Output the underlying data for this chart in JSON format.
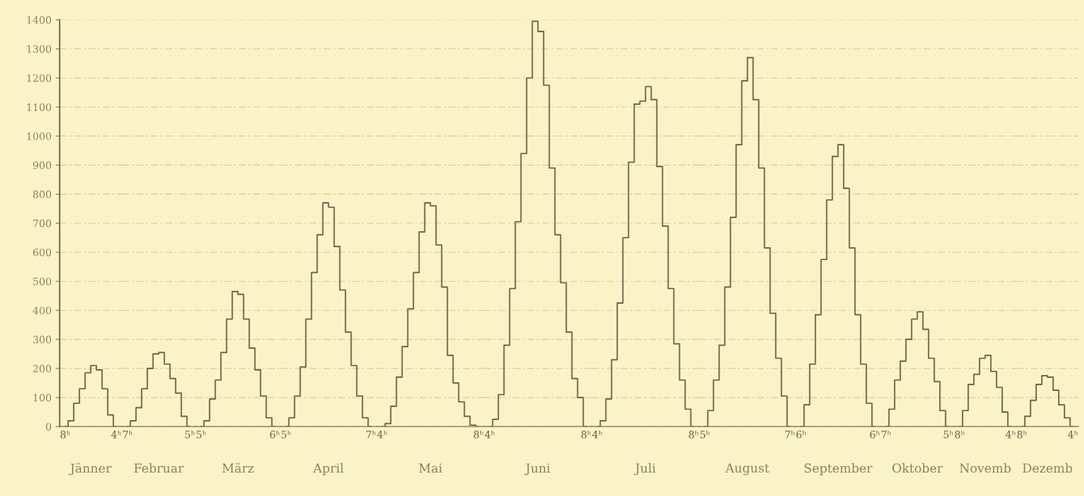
{
  "chart_data": [
    {
      "type": "step",
      "title": "Jänner",
      "categories": [
        "8ʰ",
        null,
        null,
        null,
        null,
        null,
        null,
        null,
        null,
        "4ʰ"
      ],
      "values": [
        0,
        20,
        80,
        130,
        185,
        210,
        195,
        130,
        40,
        0
      ],
      "color": "#6e6248",
      "ylim": [
        0,
        1400
      ],
      "yticks": [
        0,
        100,
        200,
        300,
        400,
        500,
        600,
        700,
        800,
        900,
        1000,
        1100,
        1200,
        1300,
        1400
      ],
      "grid": "y"
    },
    {
      "type": "step",
      "title": "Februar",
      "categories": [
        "7ʰ",
        null,
        null,
        null,
        null,
        null,
        null,
        null,
        null,
        null,
        null,
        "5ʰ"
      ],
      "values": [
        0,
        20,
        65,
        130,
        200,
        250,
        255,
        215,
        165,
        115,
        35,
        0
      ],
      "color": "#6e6248",
      "ylim": [
        0,
        1400
      ],
      "grid": "y",
      "tick_labels": "x"
    },
    {
      "type": "step",
      "title": "März",
      "categories": [
        "5ʰ",
        null,
        null,
        null,
        null,
        null,
        null,
        null,
        null,
        null,
        null,
        null,
        null,
        "6ʰ"
      ],
      "values": [
        0,
        20,
        95,
        160,
        255,
        370,
        465,
        455,
        370,
        270,
        195,
        105,
        30,
        0
      ],
      "color": "#6e6248",
      "ylim": [
        0,
        1400
      ],
      "grid": "y",
      "tick_labels": "x"
    },
    {
      "type": "step",
      "title": "April",
      "categories": [
        "5ʰ",
        null,
        null,
        null,
        null,
        null,
        null,
        null,
        null,
        null,
        null,
        null,
        null,
        null,
        null,
        "7ʰ"
      ],
      "values": [
        0,
        30,
        105,
        205,
        370,
        530,
        660,
        770,
        755,
        620,
        470,
        325,
        210,
        105,
        30,
        0
      ],
      "color": "#6e6248",
      "ylim": [
        0,
        1400
      ],
      "grid": "y",
      "tick_labels": "x"
    },
    {
      "type": "step",
      "title": "Mai",
      "categories": [
        "4ʰ",
        null,
        null,
        null,
        null,
        null,
        null,
        null,
        null,
        null,
        null,
        null,
        null,
        null,
        null,
        null,
        null,
        "8ʰ"
      ],
      "values": [
        0,
        10,
        70,
        170,
        275,
        405,
        530,
        670,
        770,
        760,
        625,
        480,
        245,
        150,
        85,
        35,
        5,
        0
      ],
      "color": "#6e6248",
      "ylim": [
        0,
        1400
      ],
      "grid": "y",
      "tick_labels": "x"
    },
    {
      "type": "step",
      "title": "Juni",
      "categories": [
        "4ʰ",
        null,
        null,
        null,
        null,
        null,
        null,
        null,
        null,
        null,
        null,
        null,
        null,
        null,
        null,
        null,
        null,
        "8ʰ"
      ],
      "values": [
        0,
        25,
        110,
        280,
        475,
        705,
        940,
        1200,
        1395,
        1360,
        1175,
        890,
        660,
        495,
        325,
        165,
        100,
        0
      ],
      "color": "#6e6248",
      "ylim": [
        0,
        1400
      ],
      "grid": "y",
      "tick_labels": "x"
    },
    {
      "type": "step",
      "title": "Juli",
      "categories": [
        "4ʰ",
        null,
        null,
        null,
        null,
        null,
        null,
        null,
        null,
        null,
        null,
        null,
        null,
        null,
        null,
        null,
        null,
        "8ʰ"
      ],
      "values": [
        0,
        20,
        95,
        230,
        425,
        650,
        910,
        1110,
        1120,
        1170,
        1125,
        895,
        690,
        475,
        285,
        160,
        60,
        0
      ],
      "color": "#6e6248",
      "ylim": [
        0,
        1400
      ],
      "grid": "y",
      "tick_labels": "x"
    },
    {
      "type": "step",
      "title": "August",
      "categories": [
        "5ʰ",
        null,
        null,
        null,
        null,
        null,
        null,
        null,
        null,
        null,
        null,
        null,
        null,
        null,
        null,
        "7ʰ"
      ],
      "values": [
        0,
        55,
        160,
        280,
        480,
        720,
        970,
        1190,
        1270,
        1125,
        890,
        615,
        390,
        235,
        105,
        0
      ],
      "color": "#6e6248",
      "ylim": [
        0,
        1400
      ],
      "grid": "y",
      "tick_labels": "x"
    },
    {
      "type": "step",
      "title": "September",
      "categories": [
        "6ʰ",
        null,
        null,
        null,
        null,
        null,
        null,
        null,
        null,
        null,
        null,
        null,
        null,
        "6ʰ"
      ],
      "values": [
        0,
        75,
        215,
        385,
        575,
        780,
        930,
        970,
        820,
        615,
        385,
        215,
        80,
        0
      ],
      "color": "#6e6248",
      "ylim": [
        0,
        1400
      ],
      "grid": "y",
      "tick_labels": "x"
    },
    {
      "type": "step",
      "title": "Oktober",
      "categories": [
        "7ʰ",
        null,
        null,
        null,
        null,
        null,
        null,
        null,
        null,
        null,
        null,
        "5ʰ"
      ],
      "values": [
        0,
        60,
        160,
        225,
        300,
        370,
        395,
        335,
        235,
        155,
        55,
        0
      ],
      "color": "#6e6248",
      "ylim": [
        0,
        1400
      ],
      "grid": "y",
      "tick_labels": "x"
    },
    {
      "type": "step",
      "title": "Novemb",
      "categories": [
        "8ʰ",
        null,
        null,
        null,
        null,
        null,
        null,
        null,
        null,
        "4ʰ"
      ],
      "values": [
        0,
        55,
        145,
        180,
        235,
        245,
        190,
        135,
        50,
        0
      ],
      "color": "#6e6248",
      "ylim": [
        0,
        1400
      ],
      "grid": "y",
      "tick_labels": "x"
    },
    {
      "type": "step",
      "title": "Dezemb",
      "categories": [
        "8ʰ",
        null,
        null,
        null,
        null,
        null,
        null,
        null,
        null,
        "4ʰ"
      ],
      "values": [
        0,
        35,
        90,
        145,
        175,
        170,
        125,
        75,
        30,
        0
      ],
      "color": "#6e6248",
      "ylim": [
        0,
        1400
      ],
      "grid": "y",
      "tick_labels": "x"
    }
  ]
}
